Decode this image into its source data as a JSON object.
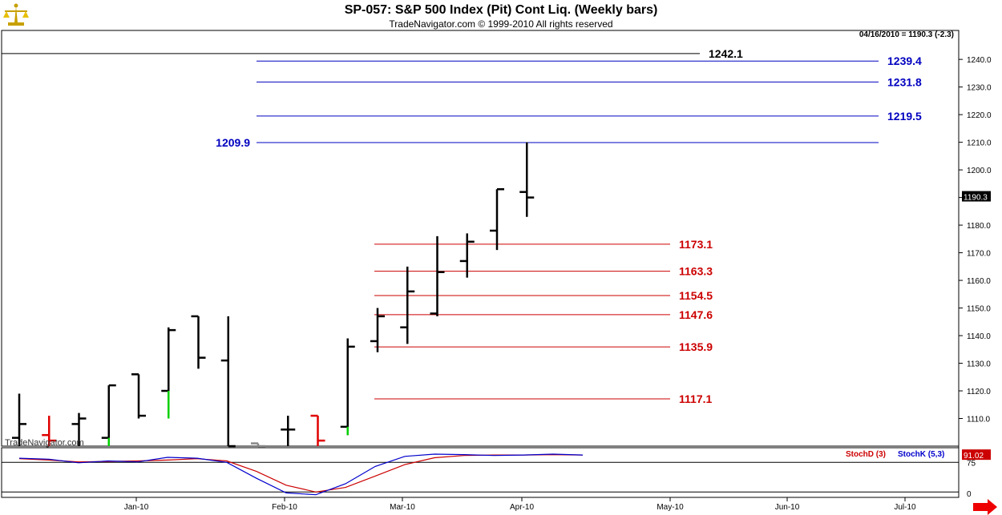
{
  "header": {
    "title": "SP-057:  S&P 500 Index (Pit) Cont Liq.  (Weekly bars)",
    "subtitle": "TradeNavigator.com © 1999-2010 All rights reserved",
    "last_readout": "04/16/2010 = 1190.3 (-2.3)",
    "watermark": "TradeNavigator.com"
  },
  "colors": {
    "up_bar": "#000000",
    "down_bar_red": "#e00000",
    "down_bar_green": "#00d000",
    "projection_blue": "#0000c0",
    "retracement_red": "#cc0000",
    "stochD": "#cc0000",
    "stochK": "#0000cc"
  },
  "chart_data": {
    "type": "ohlc-bar",
    "title": "SP-057:  S&P 500 Index (Pit) Cont Liq.  (Weekly bars)",
    "ylim": [
      1100,
      1247
    ],
    "y_ticks": [
      1110,
      1120,
      1130,
      1140,
      1150,
      1160,
      1170,
      1180,
      1190,
      1200,
      1210,
      1220,
      1230,
      1240
    ],
    "y_tick_labels": [
      "1110.0",
      "1120.0",
      "1130.0",
      "1140.0",
      "1150.0",
      "1160.0",
      "1170.0",
      "1180.0",
      "1190.0",
      "1200.0",
      "1210.0",
      "1220.0",
      "1230.0",
      "1240.0"
    ],
    "x_month_labels": [
      "Jan-10",
      "Feb-10",
      "Mar-10",
      "Apr-10",
      "May-10",
      "Jun-10",
      "Jul-10"
    ],
    "last_price_label": "1190.3",
    "bars": [
      {
        "open": 1103,
        "high": 1119,
        "low": 1100,
        "close": 1108,
        "color": "black"
      },
      {
        "open": 1104,
        "high": 1111,
        "low": 1100,
        "close": 1102,
        "color": "red"
      },
      {
        "open": 1108,
        "high": 1112,
        "low": 1100,
        "close": 1110,
        "color": "black"
      },
      {
        "open": 1103,
        "high": 1122,
        "low": 1100,
        "close": 1122,
        "color": "black"
      },
      {
        "open": 1126,
        "high": 1126,
        "low": 1110,
        "close": 1111,
        "color": "black"
      },
      {
        "open": 1120,
        "high": 1143,
        "low": 1110,
        "close": 1142,
        "color": "black"
      },
      {
        "open": 1147,
        "high": 1147,
        "low": 1128,
        "close": 1132,
        "color": "black"
      },
      {
        "open": 1131,
        "high": 1147,
        "low": 1100,
        "close": 1100,
        "color": "black"
      },
      {
        "open": 1101,
        "high": 1101,
        "low": 1100,
        "close": 1100,
        "color": "gray"
      },
      {
        "open": 1106,
        "high": 1111,
        "low": 1100,
        "close": 1106,
        "color": "black"
      },
      {
        "open": 1111,
        "high": 1111,
        "low": 1100,
        "close": 1102,
        "color": "red"
      },
      {
        "open": 1107,
        "high": 1139,
        "low": 1104,
        "close": 1136,
        "color": "black"
      },
      {
        "open": 1138,
        "high": 1150,
        "low": 1134,
        "close": 1147,
        "color": "black"
      },
      {
        "open": 1143,
        "high": 1165,
        "low": 1137,
        "close": 1156,
        "color": "black"
      },
      {
        "open": 1148,
        "high": 1176,
        "low": 1147,
        "close": 1163,
        "color": "black"
      },
      {
        "open": 1167,
        "high": 1177,
        "low": 1161,
        "close": 1174,
        "color": "black"
      },
      {
        "open": 1178,
        "high": 1193,
        "low": 1171,
        "close": 1193,
        "color": "black"
      },
      {
        "open": 1192,
        "high": 1210,
        "low": 1183,
        "close": 1190,
        "color": "black"
      }
    ],
    "level_lines": [
      {
        "label": "1242.1",
        "value": 1242.1,
        "color": "black",
        "label_side": "right"
      },
      {
        "label": "1239.4",
        "value": 1239.4,
        "color": "blue",
        "label_side": "right"
      },
      {
        "label": "1231.8",
        "value": 1231.8,
        "color": "blue",
        "label_side": "right"
      },
      {
        "label": "1219.5",
        "value": 1219.5,
        "color": "blue",
        "label_side": "right"
      },
      {
        "label": "1209.9",
        "value": 1209.9,
        "color": "blue",
        "label_side": "left"
      },
      {
        "label": "1173.1",
        "value": 1173.1,
        "color": "red",
        "label_side": "right"
      },
      {
        "label": "1163.3",
        "value": 1163.3,
        "color": "red",
        "label_side": "right"
      },
      {
        "label": "1154.5",
        "value": 1154.5,
        "color": "red",
        "label_side": "right"
      },
      {
        "label": "1147.6",
        "value": 1147.6,
        "color": "red",
        "label_side": "right"
      },
      {
        "label": "1135.9",
        "value": 1135.9,
        "color": "red",
        "label_side": "right"
      },
      {
        "label": "1117.1",
        "value": 1117.1,
        "color": "red",
        "label_side": "right"
      }
    ],
    "stochastic": {
      "stochD_label": "StochD (3)",
      "stochK_label": "StochK (5,3)",
      "last_value_label": "91.02",
      "y_tick_labels": [
        "75",
        "0"
      ],
      "ylim": [
        0,
        100
      ],
      "stochD": [
        83,
        80,
        76,
        77,
        78,
        80,
        83,
        78,
        55,
        25,
        10,
        20,
        45,
        70,
        85,
        90,
        91,
        91,
        92,
        91
      ],
      "stochK": [
        84,
        82,
        74,
        78,
        76,
        86,
        84,
        75,
        40,
        8,
        4,
        28,
        66,
        88,
        93,
        92,
        90,
        91,
        93,
        91
      ]
    }
  }
}
